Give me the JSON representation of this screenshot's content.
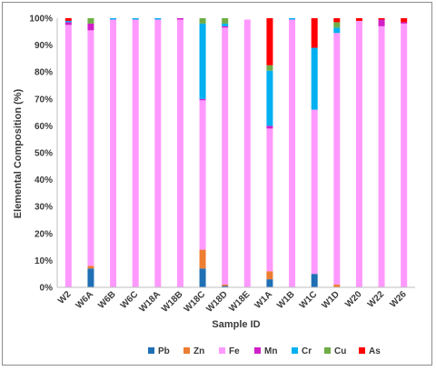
{
  "chart_data": {
    "type": "bar",
    "stacked": true,
    "title": "",
    "xlabel": "Sample ID",
    "ylabel": "Elemental Composition (%)",
    "ylim": [
      0,
      100
    ],
    "ytick_labels": [
      "0%",
      "10%",
      "20%",
      "30%",
      "40%",
      "50%",
      "60%",
      "70%",
      "80%",
      "90%",
      "100%"
    ],
    "grid": false,
    "legend_position": "bottom",
    "categories": [
      "W2",
      "W6A",
      "W6B",
      "W6C",
      "W18A",
      "W18B",
      "W18C",
      "W18D",
      "W18E",
      "W1A",
      "W1B",
      "W1C",
      "W1D",
      "W20",
      "W22",
      "W26"
    ],
    "series": [
      {
        "name": "Pb",
        "color": "#1f6fb5",
        "values": [
          0,
          7,
          0,
          0,
          0,
          0,
          7,
          0.5,
          0,
          3,
          0,
          5,
          0,
          0,
          0,
          0
        ]
      },
      {
        "name": "Zn",
        "color": "#ed7d31",
        "values": [
          0,
          1,
          0,
          0,
          0,
          0,
          7,
          0.5,
          0,
          3,
          0,
          0,
          1,
          0,
          0,
          0
        ]
      },
      {
        "name": "Fe",
        "color": "#ff99ff",
        "values": [
          97.5,
          87.5,
          99.5,
          99.5,
          99.5,
          99.5,
          55.5,
          95.5,
          99.5,
          53,
          99.5,
          61,
          93.5,
          99,
          97,
          98
        ]
      },
      {
        "name": "Mn",
        "color": "#d11fc8",
        "values": [
          1,
          2.5,
          0,
          0,
          0,
          0.5,
          0.5,
          0.5,
          0,
          1,
          0,
          0,
          0,
          0,
          2.5,
          0.5
        ]
      },
      {
        "name": "Cr",
        "color": "#00b0f0",
        "values": [
          0.5,
          0,
          0.5,
          0.5,
          0.5,
          0,
          28,
          1,
          0,
          20.5,
          0.5,
          23,
          2,
          0,
          0,
          0
        ]
      },
      {
        "name": "Cu",
        "color": "#70ad47",
        "values": [
          0,
          2,
          0,
          0,
          0,
          0,
          2,
          2,
          0,
          2,
          0,
          0,
          2,
          0,
          0,
          0
        ]
      },
      {
        "name": "As",
        "color": "#ff0000",
        "values": [
          1,
          0,
          0,
          0,
          0,
          0,
          0,
          0,
          0,
          17.5,
          0,
          11,
          1.5,
          1,
          0.5,
          1.5
        ]
      }
    ]
  }
}
